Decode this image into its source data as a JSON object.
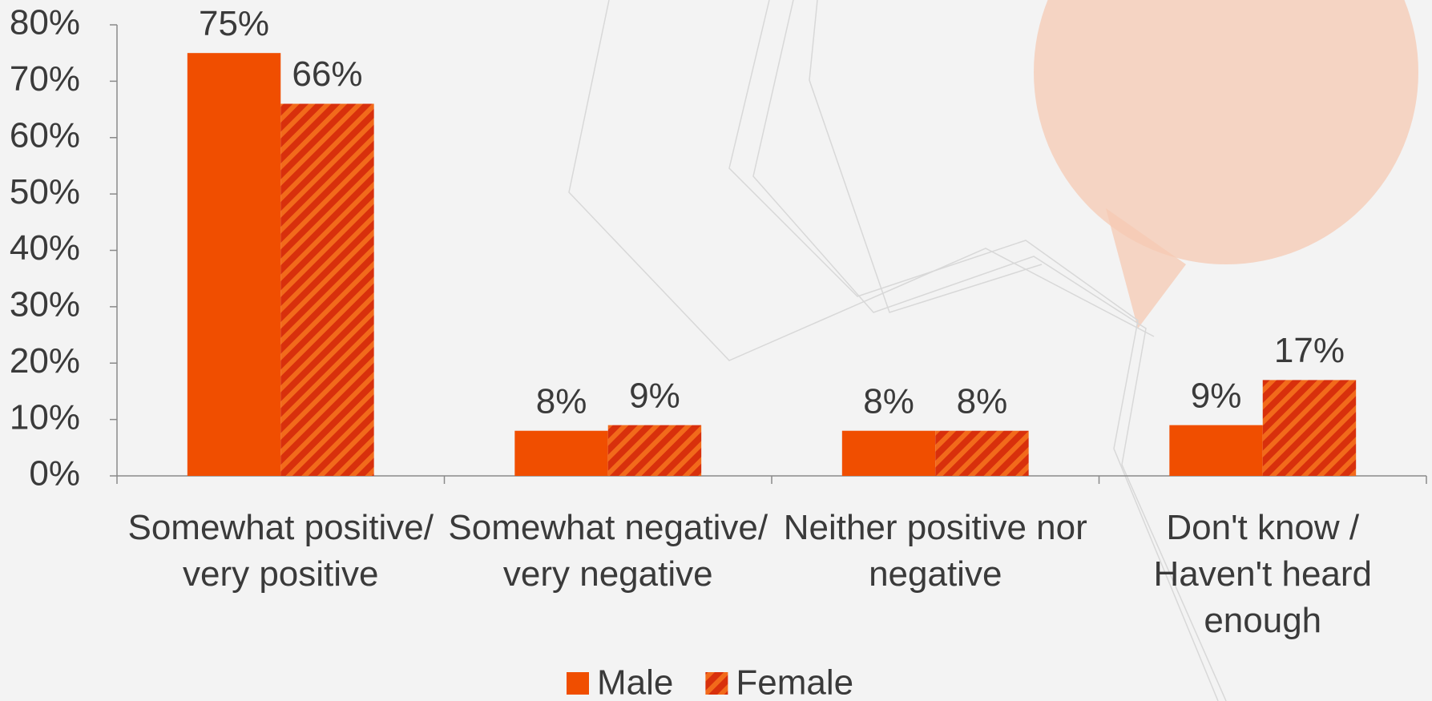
{
  "chart_data": {
    "type": "bar",
    "categories": [
      "Somewhat positive/ very positive",
      "Somewhat negative/ very negative",
      "Neither positive nor negative",
      "Don't know / Haven't heard enough"
    ],
    "series": [
      {
        "name": "Male",
        "color": "#f04e00",
        "values": [
          75,
          8,
          8,
          9
        ],
        "value_labels": [
          "75%",
          "8%",
          "8%",
          "9%"
        ]
      },
      {
        "name": "Female",
        "color": "#d8300c",
        "values": [
          66,
          9,
          8,
          17
        ],
        "value_labels": [
          "66%",
          "9%",
          "8%",
          "17%"
        ]
      }
    ],
    "ylim": [
      0,
      80
    ],
    "yticks": [
      {
        "value": 0,
        "label": "0%"
      },
      {
        "value": 10,
        "label": "10%"
      },
      {
        "value": 20,
        "label": "20%"
      },
      {
        "value": 30,
        "label": "30%"
      },
      {
        "value": 40,
        "label": "40%"
      },
      {
        "value": 50,
        "label": "50%"
      },
      {
        "value": 60,
        "label": "60%"
      },
      {
        "value": 70,
        "label": "70%"
      },
      {
        "value": 80,
        "label": "80%"
      }
    ],
    "legend": "bottom"
  }
}
